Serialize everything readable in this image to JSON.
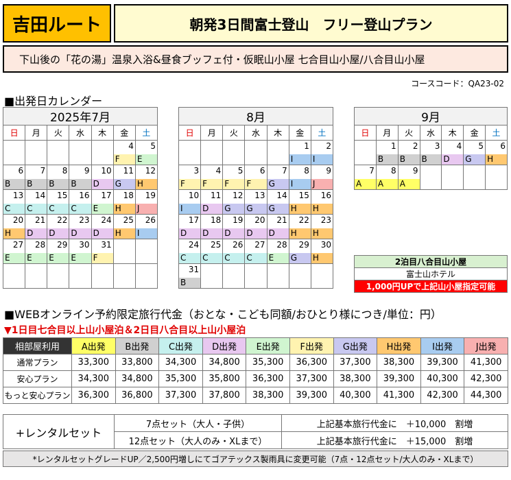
{
  "header": {
    "route": "吉田ルート",
    "title": "朝発3日間富士登山　フリー登山プラン",
    "subtitle": "下山後の「花の湯」温泉入浴&昼食ブッフェ付・仮眠山小屋 七合目山小屋/八合目山小屋",
    "course_code": "コースコード：QA23-02"
  },
  "calendar_section": {
    "heading": "■出発日カレンダー",
    "weekdays": [
      "日",
      "月",
      "火",
      "水",
      "木",
      "金",
      "土"
    ],
    "months": [
      {
        "title": "2025年7月",
        "weeks": [
          [
            null,
            null,
            null,
            null,
            null,
            {
              "d": "4",
              "l": "F"
            },
            {
              "d": "5",
              "l": "E"
            }
          ],
          [
            {
              "d": "6",
              "l": "B"
            },
            {
              "d": "7",
              "l": "B"
            },
            {
              "d": "8",
              "l": "B"
            },
            {
              "d": "9",
              "l": "B"
            },
            {
              "d": "10",
              "l": "D"
            },
            {
              "d": "11",
              "l": "G"
            },
            {
              "d": "12",
              "l": "H"
            }
          ],
          [
            {
              "d": "13",
              "l": "C"
            },
            {
              "d": "14",
              "l": "C"
            },
            {
              "d": "15",
              "l": "C"
            },
            {
              "d": "16",
              "l": "C"
            },
            {
              "d": "17",
              "l": "E"
            },
            {
              "d": "18",
              "l": "H"
            },
            {
              "d": "19",
              "l": "J"
            }
          ],
          [
            {
              "d": "20",
              "l": "H"
            },
            {
              "d": "21",
              "l": "D"
            },
            {
              "d": "22",
              "l": "D"
            },
            {
              "d": "23",
              "l": "D"
            },
            {
              "d": "24",
              "l": "D"
            },
            {
              "d": "25",
              "l": "H"
            },
            {
              "d": "26",
              "l": "I"
            }
          ],
          [
            {
              "d": "27",
              "l": "E"
            },
            {
              "d": "28",
              "l": "E"
            },
            {
              "d": "29",
              "l": "E"
            },
            {
              "d": "30",
              "l": "E"
            },
            {
              "d": "31",
              "l": "F"
            },
            null,
            null
          ],
          [
            null,
            null,
            null,
            null,
            null,
            null,
            null
          ]
        ]
      },
      {
        "title": "8月",
        "weeks": [
          [
            null,
            null,
            null,
            null,
            null,
            {
              "d": "1",
              "l": "I"
            },
            {
              "d": "2",
              "l": "I"
            }
          ],
          [
            {
              "d": "3",
              "l": "F"
            },
            {
              "d": "4",
              "l": "F"
            },
            {
              "d": "5",
              "l": "F"
            },
            {
              "d": "6",
              "l": "F"
            },
            {
              "d": "7",
              "l": "G"
            },
            {
              "d": "8",
              "l": "I"
            },
            {
              "d": "9",
              "l": "J"
            }
          ],
          [
            {
              "d": "10",
              "l": "I"
            },
            {
              "d": "11",
              "l": "D"
            },
            {
              "d": "12",
              "l": "G"
            },
            {
              "d": "13",
              "l": "G"
            },
            {
              "d": "14",
              "l": "G"
            },
            {
              "d": "15",
              "l": "H"
            },
            {
              "d": "16",
              "l": "H"
            }
          ],
          [
            {
              "d": "17",
              "l": "D"
            },
            {
              "d": "18",
              "l": "D"
            },
            {
              "d": "19",
              "l": "D"
            },
            {
              "d": "20",
              "l": "D"
            },
            {
              "d": "21",
              "l": "D"
            },
            {
              "d": "22",
              "l": "H"
            },
            {
              "d": "23",
              "l": "H"
            }
          ],
          [
            {
              "d": "24",
              "l": "C"
            },
            {
              "d": "25",
              "l": "C"
            },
            {
              "d": "26",
              "l": "C"
            },
            {
              "d": "27",
              "l": "C"
            },
            {
              "d": "28",
              "l": "E"
            },
            {
              "d": "29",
              "l": "G"
            },
            {
              "d": "30",
              "l": "H"
            }
          ],
          [
            {
              "d": "31",
              "l": "B"
            },
            null,
            null,
            null,
            null,
            null,
            null
          ]
        ]
      },
      {
        "title": "9月",
        "weeks": [
          [
            null,
            {
              "d": "1",
              "l": "B"
            },
            {
              "d": "2",
              "l": "B"
            },
            {
              "d": "3",
              "l": "B"
            },
            {
              "d": "4",
              "l": "D"
            },
            {
              "d": "5",
              "l": "G"
            },
            {
              "d": "6",
              "l": "H"
            }
          ],
          [
            {
              "d": "7",
              "l": "A"
            },
            {
              "d": "8",
              "l": "A"
            },
            {
              "d": "9",
              "l": "A"
            },
            null,
            null,
            null,
            null
          ]
        ]
      }
    ],
    "stay_legend": {
      "title": "2泊目八合目山小屋",
      "hotel": "富士山ホテル",
      "note": "1,000円UPで上記山小屋指定可能"
    }
  },
  "grade_colors": {
    "A": "#ffff66",
    "B": "#d0d0d0",
    "C": "#c5f0ee",
    "D": "#e8c8f0",
    "E": "#d0f5d0",
    "F": "#fff3b0",
    "G": "#c8c8f0",
    "H": "#ffc870",
    "I": "#a8ccf0",
    "J": "#f8b0b0"
  },
  "pricing": {
    "heading": "■WEBオンライン予約限定旅行代金（おとな・こども同額/おひとり様につき/単位：円）",
    "note": "▼1日目七合目以上山小屋泊＆2日目八合目以上山小屋泊",
    "corner": "相部屋利用",
    "columns": [
      "A出発",
      "B出発",
      "C出発",
      "D出発",
      "E出発",
      "F出発",
      "G出発",
      "H出発",
      "I出発",
      "J出発"
    ],
    "column_colors": [
      "#ffff66",
      "#d0d0d0",
      "#c5f0ee",
      "#e8c8f0",
      "#d0f5d0",
      "#fff3b0",
      "#c8c8f0",
      "#ffc870",
      "#a8ccf0",
      "#f8b0b0"
    ],
    "rows": [
      {
        "name": "通常プラン",
        "values": [
          "33,300",
          "33,800",
          "34,300",
          "34,800",
          "35,300",
          "36,300",
          "37,300",
          "38,300",
          "39,300",
          "41,300"
        ]
      },
      {
        "name": "安心プラン",
        "values": [
          "34,300",
          "34,800",
          "35,300",
          "35,800",
          "36,300",
          "37,300",
          "38,300",
          "39,300",
          "40,300",
          "42,300"
        ]
      },
      {
        "name": "もっと安心プラン",
        "values": [
          "36,300",
          "36,800",
          "37,300",
          "37,800",
          "38,300",
          "39,300",
          "40,300",
          "41,300",
          "42,300",
          "44,300"
        ]
      }
    ]
  },
  "rental": {
    "title": "+レンタルセット",
    "rows": [
      {
        "set": "7点セット（大人・子供）",
        "desc": "上記基本旅行代金に　＋10,000　割増"
      },
      {
        "set": "12点セット（大人のみ・XLまで）",
        "desc": "上記基本旅行代金に　＋15,000　割増"
      }
    ]
  },
  "footnote": "*レンタルセットグレードUP／2,500円増しにてゴアテックス製雨具に変更可能（7点・12点セット/大人のみ・XLまで）"
}
